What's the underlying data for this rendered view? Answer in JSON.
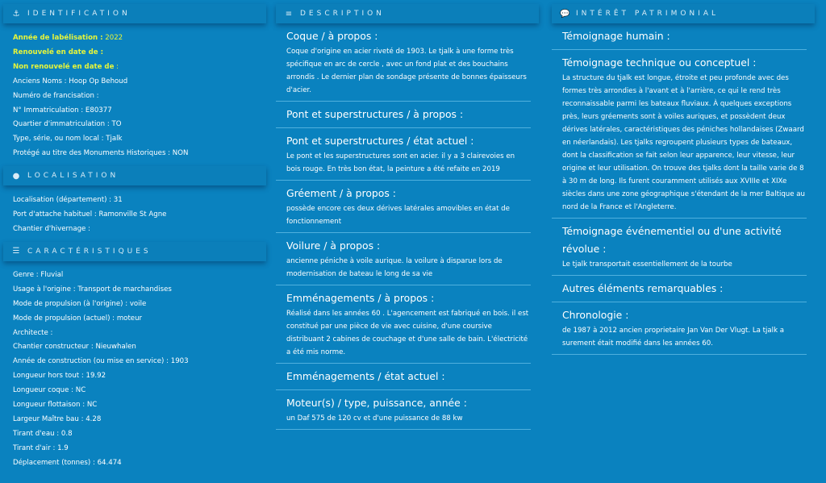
{
  "identification": {
    "title": "IDENTIFICATION",
    "icon": "anchor-icon",
    "highlight": [
      {
        "label": "Année de labélisation :",
        "value": " 2022"
      },
      {
        "label": "Renouvelé en date de :",
        "value": ""
      },
      {
        "label": "Non renouvelé en date de",
        "value": " :"
      }
    ],
    "items": [
      "Anciens Noms : Hoop Op Behoud",
      "Numéro de francisation :",
      "N° Immatriculation : E80377",
      "Quartier d'immatriculation : TO",
      "Type, série, ou nom local : Tjalk",
      "Protégé au titre des Monuments Historiques : NON"
    ]
  },
  "localisation": {
    "title": "LOCALISATION",
    "icon": "map-pin-icon",
    "items": [
      "Localisation (département) : 31",
      "Port d'attache habituel : Ramonville St Agne",
      "Chantier d'hivernage :"
    ]
  },
  "caracteristiques": {
    "title": "CARACTÉRISTIQUES",
    "icon": "sliders-icon",
    "items": [
      "Genre : Fluvial",
      "Usage à l'origine : Transport de marchandises",
      "Mode de propulsion (à l'origine) : voile",
      "Mode de propulsion (actuel) : moteur",
      "Architecte :",
      "Chantier constructeur : Nieuwhalen",
      "Année de construction (ou mise en service) : 1903",
      "Longueur hors tout : 19.92",
      "Longueur coque : NC",
      "Longueur flottaison : NC",
      "Largeur Maître bau : 4.28",
      "Tirant d'eau : 0.8",
      "Tirant d'air : 1.9",
      "Déplacement (tonnes) : 64.474"
    ]
  },
  "description": {
    "title": "DESCRIPTION",
    "icon": "align-left-icon",
    "sections": [
      {
        "title": "Coque / à propos :",
        "body": "Coque d'origine en acier riveté de 1903. Le tjalk à une forme très spécifique en arc de cercle , avec un fond plat et des bouchains arrondis . Le dernier plan de sondage présente de bonnes épaisseurs d'acier."
      },
      {
        "title": "Pont et superstructures / à propos :",
        "body": ""
      },
      {
        "title": "Pont et superstructures / état actuel :",
        "body": "Le pont et les superstructures sont en acier. il y a 3 clairevoies en bois rouge. En très bon état, la peinture a été refaite en 2019"
      },
      {
        "title": "Gréement / à propos :",
        "body": "possède encore ces deux dérives latérales amovibles en état de fonctionnement"
      },
      {
        "title": "Voilure / à propos :",
        "body": "ancienne péniche à voile aurique. la voilure à disparue lors de modernisation de bateau le long de sa vie"
      },
      {
        "title": "Emménagements / à propos :",
        "body": "Réalisé dans les années 60 . L'agencement est fabriqué en bois. il est constitué par une pièce de vie avec cuisine, d'une coursive distribuant 2 cabines de couchage et d'une salle de bain. L'électricité a été mis norme."
      },
      {
        "title": "Emménagements / état actuel :",
        "body": ""
      },
      {
        "title": "Moteur(s) / type, puissance, année :",
        "body": "un Daf 575 de 120 cv et d'une puissance de 88 kw"
      }
    ]
  },
  "interet": {
    "title": "INTÉRÊT PATRIMONIAL",
    "icon": "comment-icon",
    "sections": [
      {
        "title": "Témoignage humain :",
        "body": ""
      },
      {
        "title": "Témoignage technique ou conceptuel :",
        "body": "La structure du tjalk est longue, étroite et peu profonde avec des formes très arrondies à l'avant et à l'arrière, ce qui le rend très reconnaissable parmi les bateaux fluviaux. À quelques exceptions près, leurs gréements sont à voiles auriques, et possèdent deux dérives latérales, caractéristiques des péniches hollandaises (Zwaard en néerlandais). Les tjalks regroupent plusieurs types de bateaux, dont la classification se fait selon leur apparence, leur vitesse, leur origine et leur utilisation. On trouve des tjalks dont la taille varie de 8 à 30 m de long. Ils furent couramment utilisés aux XVIIIe et XIXe siècles dans une zone géographique s'étendant de la mer Baltique au nord de la France et l'Angleterre."
      },
      {
        "title": "Témoignage événementiel ou d'une activité révolue :",
        "body": "Le tjalk transportait essentiellement de la tourbe"
      },
      {
        "title": "Autres éléments remarquables :",
        "body": ""
      },
      {
        "title": "Chronologie :",
        "body": "de 1987 à 2012 ancien proprietaire Jan Van Der Vlugt. La tjalk a surement était modifié dans les années 60."
      }
    ]
  },
  "colors": {
    "background": "#0a82bf",
    "highlight": "#e6f53a"
  }
}
